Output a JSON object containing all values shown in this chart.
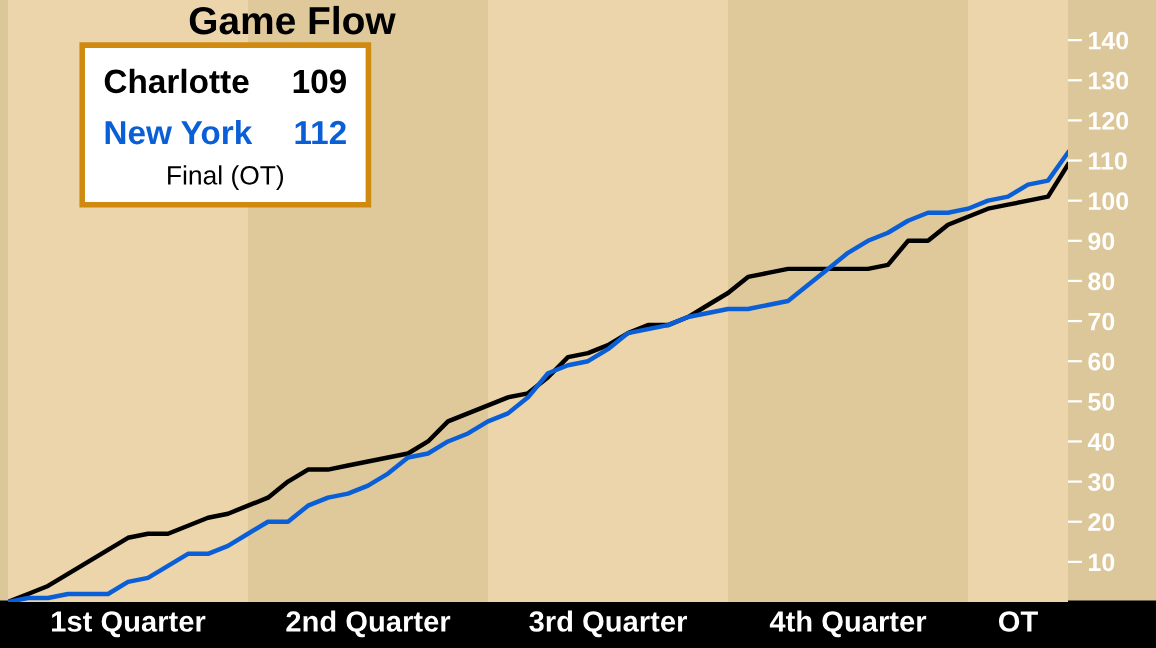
{
  "chart_data": {
    "type": "line",
    "title": "Game Flow",
    "categories": [
      null,
      null,
      null,
      null,
      null,
      null,
      null,
      null,
      null,
      null,
      null,
      null,
      null,
      null,
      null,
      null,
      null,
      null,
      null,
      null,
      null,
      null,
      null,
      null,
      null,
      null,
      null,
      null,
      null,
      null,
      null,
      null,
      null,
      null,
      null,
      null,
      null,
      null,
      null,
      null,
      null,
      null,
      null,
      null,
      null,
      null,
      null,
      null,
      null,
      null,
      null,
      null,
      null,
      null
    ],
    "series": [
      {
        "name": "Charlotte",
        "color": "#000000",
        "values": [
          0,
          2,
          4,
          7,
          10,
          13,
          16,
          17,
          17,
          19,
          21,
          22,
          24,
          26,
          30,
          33,
          33,
          34,
          35,
          36,
          37,
          40,
          45,
          47,
          49,
          51,
          52,
          56,
          61,
          62,
          64,
          67,
          69,
          69,
          71,
          74,
          77,
          81,
          82,
          83,
          83,
          83,
          83,
          83,
          84,
          90,
          90,
          94,
          96,
          98,
          99,
          100,
          101,
          109
        ]
      },
      {
        "name": "New York",
        "color": "#0a5fd6",
        "values": [
          0,
          1,
          1,
          2,
          2,
          2,
          5,
          6,
          9,
          12,
          12,
          14,
          17,
          20,
          20,
          24,
          26,
          27,
          29,
          32,
          36,
          37,
          40,
          42,
          45,
          47,
          51,
          57,
          59,
          60,
          63,
          67,
          68,
          69,
          71,
          72,
          73,
          73,
          74,
          75,
          79,
          83,
          87,
          90,
          92,
          95,
          97,
          97,
          98,
          100,
          101,
          104,
          105,
          112
        ]
      }
    ],
    "annotations": [
      "109",
      "112",
      "Final (OT)",
      "1st Quarter",
      "2nd Quarter",
      "3rd Quarter",
      "4th Quarter",
      "OT"
    ],
    "tick_labels": "y",
    "ylim": [
      0,
      150
    ],
    "yticks": [
      10,
      20,
      30,
      40,
      50,
      60,
      70,
      80,
      90,
      100,
      110,
      120,
      130,
      140
    ],
    "grid": false,
    "line_style": "solid",
    "marker": "none"
  }
}
